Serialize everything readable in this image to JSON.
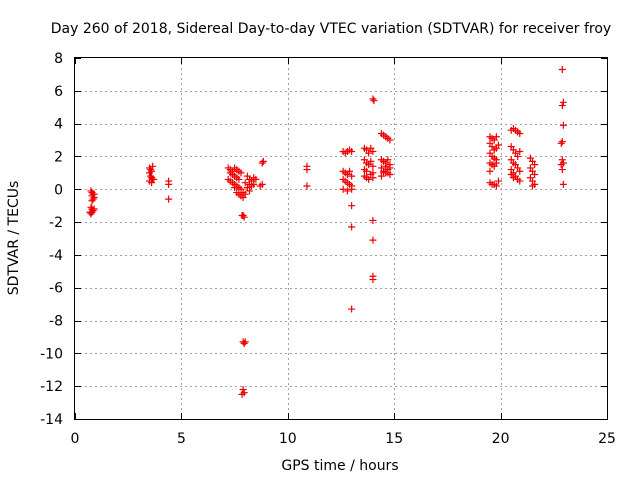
{
  "chart_data": {
    "type": "scatter",
    "title": "Day 260 of 2018, Sidereal Day-to-day VTEC variation (SDTVAR) for receiver froy",
    "xlabel": "GPS time / hours",
    "ylabel": "SDTVAR / TECUs",
    "xlim": [
      0,
      25
    ],
    "ylim": [
      -14,
      8
    ],
    "xticks": [
      0,
      5,
      10,
      15,
      20,
      25
    ],
    "yticks": [
      -14,
      -12,
      -10,
      -8,
      -6,
      -4,
      -2,
      0,
      2,
      4,
      6,
      8
    ],
    "grid": true,
    "marker": "+",
    "color": "#ee0000",
    "series": [
      {
        "name": "SDTVAR",
        "points": [
          [
            0.75,
            -0.1
          ],
          [
            0.8,
            -0.2
          ],
          [
            0.85,
            -0.3
          ],
          [
            0.8,
            -0.4
          ],
          [
            0.9,
            -0.5
          ],
          [
            0.85,
            -0.6
          ],
          [
            0.8,
            -0.7
          ],
          [
            0.9,
            -0.3
          ],
          [
            0.75,
            -1.1
          ],
          [
            0.8,
            -1.2
          ],
          [
            0.85,
            -1.3
          ],
          [
            0.8,
            -1.4
          ],
          [
            0.75,
            -1.5
          ],
          [
            0.9,
            -1.2
          ],
          [
            0.7,
            -1.4
          ],
          [
            3.5,
            1.3
          ],
          [
            3.55,
            1.2
          ],
          [
            3.6,
            1.1
          ],
          [
            3.65,
            1.4
          ],
          [
            3.5,
            1.0
          ],
          [
            3.55,
            0.8
          ],
          [
            3.6,
            0.7
          ],
          [
            3.65,
            0.6
          ],
          [
            3.5,
            0.5
          ],
          [
            3.6,
            0.4
          ],
          [
            3.7,
            0.6
          ],
          [
            4.4,
            0.5
          ],
          [
            4.4,
            0.3
          ],
          [
            4.4,
            -0.6
          ],
          [
            7.2,
            1.3
          ],
          [
            7.3,
            1.2
          ],
          [
            7.4,
            1.1
          ],
          [
            7.5,
            1.3
          ],
          [
            7.6,
            1.2
          ],
          [
            7.7,
            1.1
          ],
          [
            7.8,
            1.0
          ],
          [
            7.3,
            1.0
          ],
          [
            7.4,
            0.9
          ],
          [
            7.5,
            0.8
          ],
          [
            7.6,
            0.7
          ],
          [
            7.7,
            0.6
          ],
          [
            7.2,
            0.6
          ],
          [
            7.3,
            0.5
          ],
          [
            7.4,
            0.4
          ],
          [
            7.5,
            0.3
          ],
          [
            7.6,
            0.2
          ],
          [
            7.7,
            0.1
          ],
          [
            7.8,
            0.0
          ],
          [
            7.9,
            -0.2
          ],
          [
            8.0,
            -0.3
          ],
          [
            7.9,
            -0.5
          ],
          [
            7.8,
            -0.4
          ],
          [
            7.7,
            -0.3
          ],
          [
            7.6,
            -0.2
          ],
          [
            7.5,
            0.1
          ],
          [
            7.9,
            -1.6
          ],
          [
            7.95,
            -1.7
          ],
          [
            7.85,
            -1.6
          ],
          [
            8.1,
            0.8
          ],
          [
            8.2,
            0.6
          ],
          [
            8.3,
            0.5
          ],
          [
            8.4,
            0.7
          ],
          [
            8.5,
            0.6
          ],
          [
            8.2,
            0.3
          ],
          [
            8.3,
            0.2
          ],
          [
            8.1,
            0.1
          ],
          [
            8.2,
            -0.1
          ],
          [
            8.0,
            0.4
          ],
          [
            8.4,
            0.3
          ],
          [
            8.7,
            0.2
          ],
          [
            8.8,
            0.3
          ],
          [
            8.8,
            1.6
          ],
          [
            8.85,
            1.7
          ],
          [
            7.9,
            -9.3
          ],
          [
            7.95,
            -9.4
          ],
          [
            8.0,
            -9.3
          ],
          [
            7.9,
            -12.2
          ],
          [
            7.95,
            -12.4
          ],
          [
            7.85,
            -12.5
          ],
          [
            10.9,
            1.4
          ],
          [
            10.9,
            1.2
          ],
          [
            10.9,
            0.2
          ],
          [
            12.6,
            2.3
          ],
          [
            12.7,
            2.2
          ],
          [
            12.8,
            2.3
          ],
          [
            12.9,
            2.4
          ],
          [
            13.0,
            2.3
          ],
          [
            12.6,
            1.1
          ],
          [
            12.7,
            1.0
          ],
          [
            12.8,
            0.9
          ],
          [
            12.9,
            1.1
          ],
          [
            13.0,
            0.8
          ],
          [
            12.6,
            0.6
          ],
          [
            12.7,
            0.5
          ],
          [
            12.8,
            0.4
          ],
          [
            12.9,
            0.3
          ],
          [
            13.0,
            0.2
          ],
          [
            12.6,
            0.0
          ],
          [
            12.8,
            -0.1
          ],
          [
            13.0,
            0.0
          ],
          [
            13.0,
            -1.0
          ],
          [
            13.0,
            -2.3
          ],
          [
            13.0,
            -7.3
          ],
          [
            13.6,
            2.5
          ],
          [
            13.7,
            2.4
          ],
          [
            13.8,
            2.2
          ],
          [
            13.9,
            2.5
          ],
          [
            14.0,
            2.3
          ],
          [
            13.6,
            1.8
          ],
          [
            13.7,
            1.6
          ],
          [
            13.8,
            1.5
          ],
          [
            13.9,
            1.7
          ],
          [
            14.0,
            1.4
          ],
          [
            13.6,
            1.2
          ],
          [
            13.7,
            1.1
          ],
          [
            14.0,
            1.0
          ],
          [
            13.6,
            0.8
          ],
          [
            13.7,
            0.7
          ],
          [
            13.8,
            0.6
          ],
          [
            13.9,
            0.9
          ],
          [
            14.0,
            0.7
          ],
          [
            14.0,
            5.5
          ],
          [
            14.05,
            5.4
          ],
          [
            14.0,
            -1.9
          ],
          [
            14.0,
            -3.1
          ],
          [
            14.0,
            -5.3
          ],
          [
            14.0,
            -5.5
          ],
          [
            14.4,
            3.4
          ],
          [
            14.5,
            3.3
          ],
          [
            14.6,
            3.2
          ],
          [
            14.7,
            3.1
          ],
          [
            14.8,
            3.0
          ],
          [
            14.4,
            1.8
          ],
          [
            14.5,
            1.7
          ],
          [
            14.6,
            1.6
          ],
          [
            14.7,
            1.8
          ],
          [
            14.8,
            1.5
          ],
          [
            14.4,
            1.3
          ],
          [
            14.5,
            1.1
          ],
          [
            14.6,
            1.0
          ],
          [
            14.7,
            1.2
          ],
          [
            14.8,
            0.9
          ],
          [
            14.4,
            0.8
          ],
          [
            14.5,
            1.0
          ],
          [
            14.6,
            1.4
          ],
          [
            14.7,
            1.0
          ],
          [
            14.8,
            1.3
          ],
          [
            19.5,
            3.2
          ],
          [
            19.6,
            3.1
          ],
          [
            19.7,
            3.0
          ],
          [
            19.8,
            3.2
          ],
          [
            19.5,
            2.8
          ],
          [
            19.6,
            2.6
          ],
          [
            19.7,
            2.4
          ],
          [
            19.8,
            2.5
          ],
          [
            19.9,
            2.7
          ],
          [
            19.5,
            2.2
          ],
          [
            19.6,
            2.0
          ],
          [
            19.7,
            1.9
          ],
          [
            19.8,
            1.8
          ],
          [
            19.5,
            1.6
          ],
          [
            19.6,
            1.5
          ],
          [
            19.7,
            1.4
          ],
          [
            19.8,
            1.6
          ],
          [
            19.5,
            1.1
          ],
          [
            19.5,
            0.4
          ],
          [
            19.6,
            0.3
          ],
          [
            19.7,
            0.3
          ],
          [
            19.8,
            0.2
          ],
          [
            19.9,
            0.5
          ],
          [
            20.5,
            3.6
          ],
          [
            20.6,
            3.7
          ],
          [
            20.7,
            3.6
          ],
          [
            20.8,
            3.5
          ],
          [
            20.9,
            3.4
          ],
          [
            20.5,
            2.6
          ],
          [
            20.6,
            2.4
          ],
          [
            20.7,
            2.2
          ],
          [
            20.8,
            2.0
          ],
          [
            20.9,
            2.3
          ],
          [
            20.5,
            1.8
          ],
          [
            20.6,
            1.6
          ],
          [
            20.7,
            1.5
          ],
          [
            20.8,
            1.3
          ],
          [
            20.9,
            1.1
          ],
          [
            20.5,
            1.2
          ],
          [
            20.6,
            1.0
          ],
          [
            20.7,
            0.8
          ],
          [
            20.8,
            0.6
          ],
          [
            20.9,
            0.5
          ],
          [
            20.5,
            0.9
          ],
          [
            20.6,
            0.7
          ],
          [
            21.4,
            1.9
          ],
          [
            21.5,
            1.7
          ],
          [
            21.6,
            1.5
          ],
          [
            21.4,
            1.3
          ],
          [
            21.5,
            1.1
          ],
          [
            21.6,
            0.9
          ],
          [
            21.4,
            0.7
          ],
          [
            21.5,
            0.5
          ],
          [
            21.6,
            0.3
          ],
          [
            21.5,
            0.2
          ],
          [
            22.9,
            7.3
          ],
          [
            22.95,
            5.3
          ],
          [
            22.9,
            5.1
          ],
          [
            22.95,
            3.9
          ],
          [
            22.9,
            2.9
          ],
          [
            22.85,
            2.8
          ],
          [
            22.9,
            1.8
          ],
          [
            22.95,
            1.6
          ],
          [
            22.85,
            1.5
          ],
          [
            22.9,
            1.2
          ],
          [
            22.95,
            0.3
          ]
        ]
      }
    ]
  }
}
